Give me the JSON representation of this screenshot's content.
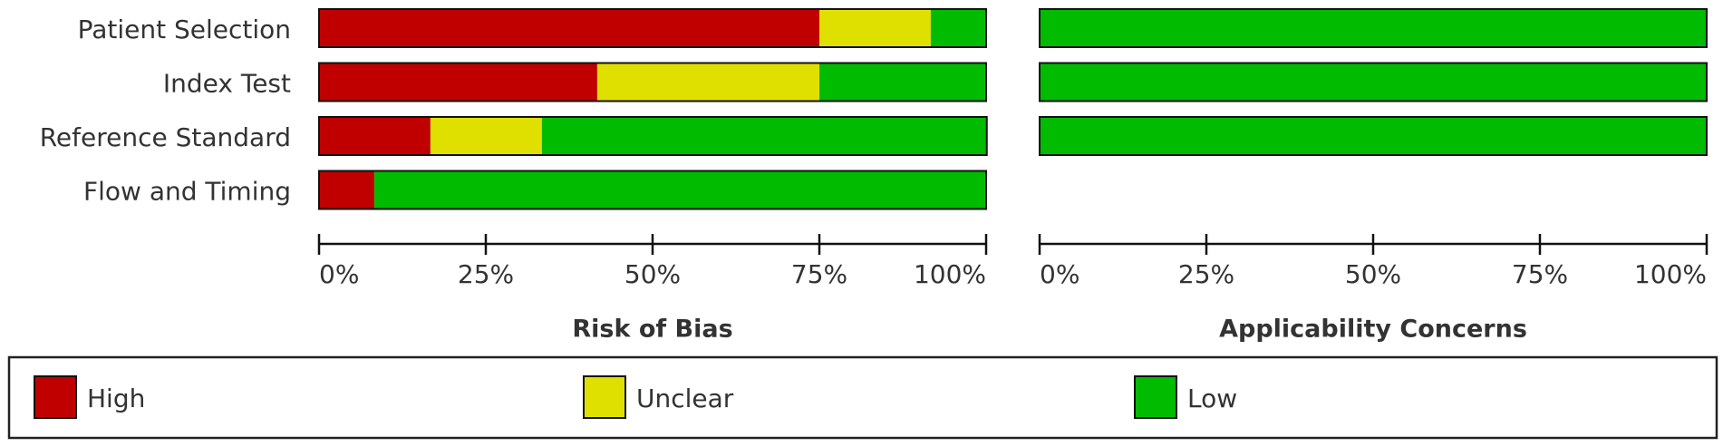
{
  "chart_data": [
    {
      "type": "bar",
      "orientation": "horizontal",
      "stacked": true,
      "title": "Risk of Bias",
      "categories": [
        "Patient Selection",
        "Index Test",
        "Reference Standard",
        "Flow and Timing"
      ],
      "series": [
        {
          "name": "High",
          "color": "#c00000",
          "values": [
            75,
            41.7,
            16.7,
            8.3
          ]
        },
        {
          "name": "Unclear",
          "color": "#e0e000",
          "values": [
            16.7,
            33.3,
            16.7,
            0
          ]
        },
        {
          "name": "Low",
          "color": "#00bb00",
          "values": [
            8.3,
            25,
            66.7,
            91.7
          ]
        }
      ],
      "xlim": [
        0,
        100
      ],
      "xticks": [
        {
          "value": 0,
          "label": "0%"
        },
        {
          "value": 25,
          "label": "25%"
        },
        {
          "value": 50,
          "label": "50%"
        },
        {
          "value": 75,
          "label": "75%"
        },
        {
          "value": 100,
          "label": "100%"
        }
      ]
    },
    {
      "type": "bar",
      "orientation": "horizontal",
      "stacked": true,
      "title": "Applicability Concerns",
      "series": [
        {
          "name": "High",
          "color": "#c00000",
          "values": [
            0,
            0,
            0,
            null
          ]
        },
        {
          "name": "Unclear",
          "color": "#e0e000",
          "values": [
            0,
            0,
            0,
            null
          ]
        },
        {
          "name": "Low",
          "color": "#00bb00",
          "values": [
            100,
            100,
            100,
            null
          ]
        }
      ],
      "xlim": [
        0,
        100
      ],
      "xticks": [
        {
          "value": 0,
          "label": "0%"
        },
        {
          "value": 25,
          "label": "25%"
        },
        {
          "value": 50,
          "label": "50%"
        },
        {
          "value": 75,
          "label": "75%"
        },
        {
          "value": 100,
          "label": "100%"
        }
      ]
    }
  ]
}
